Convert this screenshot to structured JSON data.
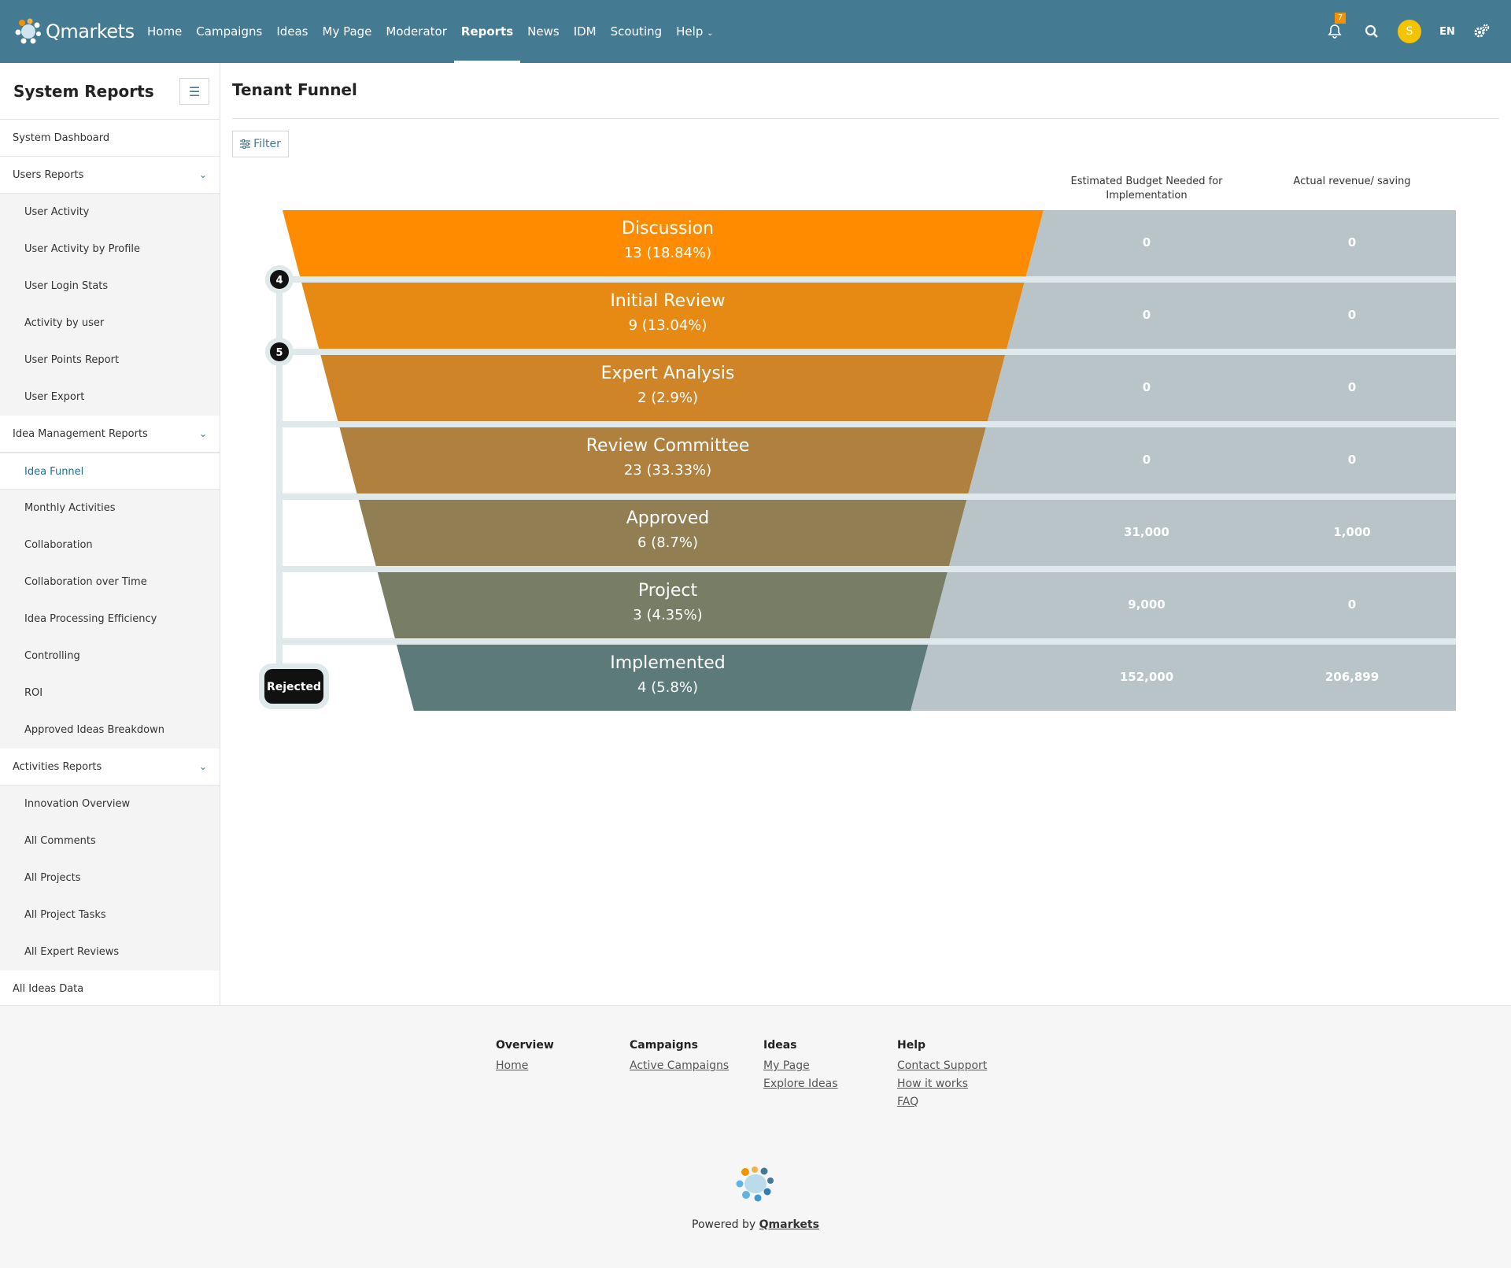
{
  "brand": {
    "name": "Qmarkets"
  },
  "nav": {
    "items": [
      {
        "label": "Home",
        "active": false
      },
      {
        "label": "Campaigns",
        "active": false
      },
      {
        "label": "Ideas",
        "active": false
      },
      {
        "label": "My Page",
        "active": false
      },
      {
        "label": "Moderator",
        "active": false
      },
      {
        "label": "Reports",
        "active": true
      },
      {
        "label": "News",
        "active": false
      },
      {
        "label": "IDM",
        "active": false
      },
      {
        "label": "Scouting",
        "active": false
      },
      {
        "label": "Help",
        "active": false
      }
    ],
    "notifications_count": "7",
    "avatar_initial": "S",
    "language": "EN"
  },
  "sidebar": {
    "title": "System Reports",
    "items": [
      {
        "label": "System Dashboard",
        "level": 1
      },
      {
        "label": "Users Reports",
        "level": 1,
        "expandable": true
      },
      {
        "label": "User Activity",
        "level": 2
      },
      {
        "label": "User Activity by Profile",
        "level": 2
      },
      {
        "label": "User Login Stats",
        "level": 2
      },
      {
        "label": "Activity by user",
        "level": 2
      },
      {
        "label": "User Points Report",
        "level": 2
      },
      {
        "label": "User Export",
        "level": 2
      },
      {
        "label": "Idea Management Reports",
        "level": 1,
        "expandable": true
      },
      {
        "label": "Idea Funnel",
        "level": 2,
        "active": true
      },
      {
        "label": "Monthly Activities",
        "level": 2
      },
      {
        "label": "Collaboration",
        "level": 2
      },
      {
        "label": "Collaboration over Time",
        "level": 2
      },
      {
        "label": "Idea Processing Efficiency",
        "level": 2
      },
      {
        "label": "Controlling",
        "level": 2
      },
      {
        "label": "ROI",
        "level": 2
      },
      {
        "label": "Approved Ideas Breakdown",
        "level": 2
      },
      {
        "label": "Activities Reports",
        "level": 1,
        "expandable": true
      },
      {
        "label": "Innovation Overview",
        "level": 2
      },
      {
        "label": "All Comments",
        "level": 2
      },
      {
        "label": "All Projects",
        "level": 2
      },
      {
        "label": "All Project Tasks",
        "level": 2
      },
      {
        "label": "All Expert Reviews",
        "level": 2
      },
      {
        "label": "All Ideas Data",
        "level": 1
      }
    ]
  },
  "main": {
    "title": "Tenant Funnel",
    "filter_label": "Filter",
    "columns": [
      "Estimated Budget Needed for Implementation",
      "Actual revenue/ saving"
    ]
  },
  "chart_data": {
    "type": "table",
    "stages": [
      {
        "name": "Discussion",
        "count": 13,
        "percent": "18.84%",
        "label": "13 (18.84%)",
        "budget": "0",
        "revenue": "0",
        "color": "#ff8c00"
      },
      {
        "name": "Initial Review",
        "count": 9,
        "percent": "13.04%",
        "label": "9 (13.04%)",
        "budget": "0",
        "revenue": "0",
        "color": "#e68a14"
      },
      {
        "name": "Expert Analysis",
        "count": 2,
        "percent": "2.9%",
        "label": "2 (2.9%)",
        "budget": "0",
        "revenue": "0",
        "color": "#cf8428"
      },
      {
        "name": "Review Committee",
        "count": 23,
        "percent": "33.33%",
        "label": "23 (33.33%)",
        "budget": "0",
        "revenue": "0",
        "color": "#b0813e"
      },
      {
        "name": "Approved",
        "count": 6,
        "percent": "8.7%",
        "label": "6 (8.7%)",
        "budget": "31,000",
        "revenue": "1,000",
        "color": "#917f53"
      },
      {
        "name": "Project",
        "count": 3,
        "percent": "4.35%",
        "label": "3 (4.35%)",
        "budget": "9,000",
        "revenue": "0",
        "color": "#787e66"
      },
      {
        "name": "Implemented",
        "count": 4,
        "percent": "5.8%",
        "label": "4 (5.8%)",
        "budget": "152,000",
        "revenue": "206,899",
        "color": "#5c7a7a"
      }
    ],
    "rejected": {
      "label": "Rejected",
      "markers": [
        {
          "after_stage": "Discussion",
          "value": "4"
        },
        {
          "after_stage": "Initial Review",
          "value": "5"
        }
      ]
    }
  },
  "footer": {
    "columns": [
      {
        "title": "Overview",
        "links": [
          "Home"
        ]
      },
      {
        "title": "Campaigns",
        "links": [
          "Active Campaigns"
        ]
      },
      {
        "title": "Ideas",
        "links": [
          "My Page",
          "Explore Ideas"
        ]
      },
      {
        "title": "Help",
        "links": [
          "Contact Support",
          "How it works",
          "FAQ"
        ]
      }
    ],
    "powered_prefix": "Powered by",
    "powered_brand": "Qmarkets"
  }
}
